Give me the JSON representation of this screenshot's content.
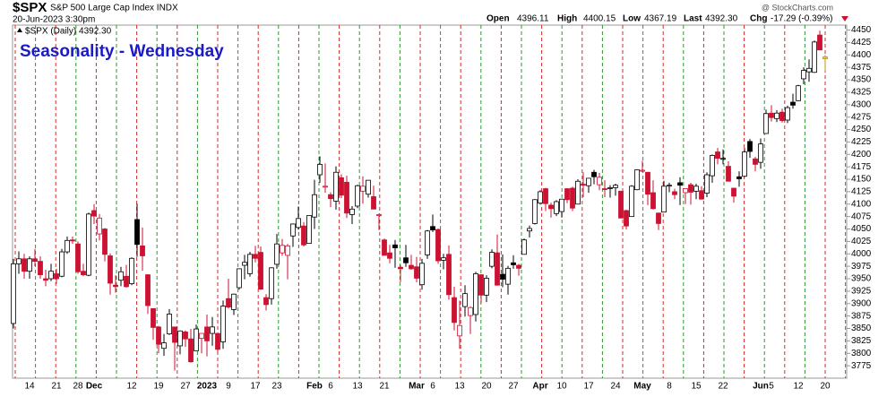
{
  "header": {
    "symbol": "$SPX",
    "name": "S&P 500 Large Cap Index INDX",
    "date": "20-Jun-2023 3:30pm",
    "open_label": "Open",
    "open": "4396.11",
    "high_label": "High",
    "high": "4400.15",
    "low_label": "Low",
    "low": "4367.19",
    "last_label": "Last",
    "last": "4392.30",
    "chg_label": "Chg",
    "chg": "-17.29 (-0.39%)",
    "watermark": "@ StockCharts.com"
  },
  "chart_data": {
    "type": "candlestick",
    "title": "Seasonality - Wednesday",
    "legend_label": "$SPX (Daily) 4392.30",
    "up_color": "#000000",
    "down_color": "#cc1133",
    "last_color": "#f2d23c",
    "title_color": "#1a1acc",
    "ylim": [
      3750,
      4460
    ],
    "yticks": [
      3775,
      3800,
      3825,
      3850,
      3875,
      3900,
      3925,
      3950,
      3975,
      4000,
      4025,
      4050,
      4075,
      4100,
      4125,
      4150,
      4175,
      4200,
      4225,
      4250,
      4275,
      4300,
      4325,
      4350,
      4375,
      4400,
      4425,
      4450
    ],
    "categories": [
      null,
      null,
      null,
      "14",
      null,
      null,
      null,
      null,
      "21",
      null,
      null,
      null,
      "28",
      null,
      null,
      "Dec",
      null,
      null,
      null,
      null,
      null,
      null,
      "12",
      null,
      null,
      null,
      null,
      "19",
      null,
      null,
      null,
      null,
      "27",
      null,
      null,
      null,
      "2023",
      null,
      null,
      null,
      "9",
      null,
      null,
      null,
      null,
      "17",
      null,
      null,
      null,
      "23",
      null,
      null,
      null,
      null,
      null,
      null,
      "Feb",
      null,
      null,
      "6",
      null,
      null,
      null,
      null,
      "13",
      null,
      null,
      null,
      null,
      "21",
      null,
      null,
      null,
      null,
      null,
      "Mar",
      null,
      null,
      "6",
      null,
      null,
      null,
      null,
      "13",
      null,
      null,
      null,
      null,
      "20",
      null,
      null,
      null,
      null,
      "27",
      null,
      null,
      null,
      null,
      "Apr",
      null,
      null,
      null,
      "10",
      null,
      null,
      null,
      null,
      "17",
      null,
      null,
      null,
      null,
      "24",
      null,
      null,
      null,
      null,
      "May",
      null,
      null,
      null,
      null,
      "8",
      null,
      null,
      null,
      null,
      "15",
      null,
      null,
      null,
      null,
      "22",
      null,
      null,
      null,
      null,
      null,
      null,
      "Jun",
      null,
      "5",
      null,
      null,
      null,
      null,
      "12",
      null,
      null,
      null,
      null,
      "20"
    ],
    "candles": [
      [
        3860,
        3990,
        3850,
        3980
      ],
      [
        3980,
        4005,
        3960,
        3990
      ],
      [
        3990,
        4000,
        3950,
        3965
      ],
      [
        3965,
        3995,
        3950,
        3990
      ],
      [
        3990,
        4010,
        3975,
        3985
      ],
      [
        3985,
        3995,
        3950,
        3958
      ],
      [
        3950,
        3968,
        3935,
        3947
      ],
      [
        3950,
        3980,
        3945,
        3965
      ],
      [
        3960,
        3970,
        3940,
        3950
      ],
      [
        3955,
        4010,
        3953,
        4004
      ],
      [
        4004,
        4035,
        4000,
        4027
      ],
      [
        4028,
        4035,
        4020,
        4026
      ],
      [
        4020,
        4025,
        3960,
        3964
      ],
      [
        3965,
        3980,
        3955,
        3958
      ],
      [
        3957,
        4083,
        3955,
        4080
      ],
      [
        4087,
        4100,
        4060,
        4076
      ],
      [
        4040,
        4080,
        4027,
        4072
      ],
      [
        4050,
        4052,
        3985,
        3999
      ],
      [
        3996,
        4001,
        3918,
        3941
      ],
      [
        3937,
        3957,
        3922,
        3934
      ],
      [
        3947,
        3974,
        3935,
        3964
      ],
      [
        3955,
        3978,
        3932,
        3934
      ],
      [
        3940,
        3993,
        3937,
        3991
      ],
      [
        4069,
        4101,
        3994,
        4019
      ],
      [
        4016,
        4053,
        3966,
        3996
      ],
      [
        3958,
        3959,
        3879,
        3896
      ],
      [
        3890,
        3890,
        3827,
        3852
      ],
      [
        3853,
        3855,
        3800,
        3818
      ],
      [
        3810,
        3839,
        3795,
        3821
      ],
      [
        3839,
        3889,
        3837,
        3879
      ],
      [
        3853,
        3853,
        3765,
        3822
      ],
      [
        3815,
        3846,
        3798,
        3845
      ],
      [
        3843,
        3846,
        3813,
        3829
      ],
      [
        3829,
        3849,
        3781,
        3783
      ],
      [
        3805,
        3858,
        3805,
        3849
      ],
      [
        3830,
        3840,
        3800,
        3840
      ],
      [
        3853,
        3878,
        3794,
        3825
      ],
      [
        3840,
        3873,
        3815,
        3853
      ],
      [
        3840,
        3840,
        3802,
        3808
      ],
      [
        3823,
        3906,
        3809,
        3895
      ],
      [
        3910,
        3950,
        3890,
        3893
      ],
      [
        3888,
        3920,
        3877,
        3919
      ],
      [
        3932,
        3970,
        3928,
        3970
      ],
      [
        3977,
        3998,
        3949,
        3983
      ],
      [
        3960,
        4004,
        3954,
        3999
      ],
      [
        3999,
        4016,
        3983,
        3991
      ],
      [
        4003,
        4015,
        3928,
        3929
      ],
      [
        3912,
        3919,
        3886,
        3898
      ],
      [
        3910,
        3973,
        3898,
        3972
      ],
      [
        3979,
        4040,
        3970,
        4020
      ],
      [
        4002,
        4030,
        3996,
        4017
      ],
      [
        3997,
        4020,
        3949,
        4016
      ],
      [
        4036,
        4061,
        4014,
        4060
      ],
      [
        4053,
        4095,
        4049,
        4071
      ],
      [
        4056,
        4064,
        4015,
        4018
      ],
      [
        4021,
        4077,
        4021,
        4077
      ],
      [
        4074,
        4149,
        4050,
        4119
      ],
      [
        4159,
        4196,
        4143,
        4180
      ],
      [
        4136,
        4182,
        4123,
        4136
      ],
      [
        4119,
        4124,
        4094,
        4111
      ],
      [
        4106,
        4176,
        4089,
        4164
      ],
      [
        4153,
        4160,
        4112,
        4118
      ],
      [
        4144,
        4157,
        4072,
        4082
      ],
      [
        4079,
        4096,
        4060,
        4090
      ],
      [
        4096,
        4139,
        4092,
        4137
      ],
      [
        4126,
        4156,
        4101,
        4136
      ],
      [
        4120,
        4148,
        4113,
        4148
      ],
      [
        4115,
        4137,
        4090,
        4090
      ],
      [
        4077,
        4081,
        4048,
        4079
      ],
      [
        4028,
        4031,
        3997,
        3997
      ],
      [
        4002,
        4018,
        3981,
        3991
      ],
      [
        4018,
        4028,
        3972,
        4012
      ],
      [
        3973,
        3978,
        3943,
        3970
      ],
      [
        3992,
        4018,
        3974,
        3982
      ],
      [
        3977,
        3998,
        3968,
        3970
      ],
      [
        3974,
        3994,
        3943,
        3951
      ],
      [
        3938,
        3990,
        3928,
        3981
      ],
      [
        3998,
        4048,
        3990,
        4046
      ],
      [
        4055,
        4079,
        4044,
        4048
      ],
      [
        4049,
        4051,
        3980,
        3986
      ],
      [
        3987,
        4000,
        3969,
        3992
      ],
      [
        3999,
        4017,
        3908,
        3918
      ],
      [
        3912,
        3934,
        3846,
        3862
      ],
      [
        3835,
        3906,
        3809,
        3856
      ],
      [
        3894,
        3937,
        3874,
        3920
      ],
      [
        3876,
        3894,
        3839,
        3892
      ],
      [
        3878,
        3964,
        3864,
        3960
      ],
      [
        3958,
        3959,
        3901,
        3917
      ],
      [
        3917,
        3957,
        3903,
        3951
      ],
      [
        3975,
        4009,
        3971,
        4003
      ],
      [
        4002,
        4039,
        3937,
        3937
      ],
      [
        3959,
        3999,
        3933,
        3949
      ],
      [
        3939,
        3976,
        3918,
        3971
      ],
      [
        3982,
        3997,
        3970,
        3978
      ],
      [
        3977,
        3980,
        3956,
        3971
      ],
      [
        3999,
        4031,
        3999,
        4028
      ],
      [
        4046,
        4057,
        4033,
        4051
      ],
      [
        4061,
        4110,
        4059,
        4109
      ],
      [
        4102,
        4128,
        4099,
        4125
      ],
      [
        4131,
        4133,
        4086,
        4101
      ],
      [
        4098,
        4103,
        4073,
        4091
      ],
      [
        4081,
        4108,
        4076,
        4105
      ],
      [
        4085,
        4110,
        4073,
        4110
      ],
      [
        4131,
        4132,
        4102,
        4109
      ],
      [
        4132,
        4135,
        4086,
        4092
      ],
      [
        4100,
        4150,
        4100,
        4146
      ],
      [
        4140,
        4164,
        4114,
        4138
      ],
      [
        4137,
        4152,
        4123,
        4152
      ],
      [
        4164,
        4169,
        4140,
        4155
      ],
      [
        4139,
        4163,
        4128,
        4154
      ],
      [
        4131,
        4148,
        4114,
        4130
      ],
      [
        4133,
        4138,
        4113,
        4133
      ],
      [
        4133,
        4141,
        4117,
        4138
      ],
      [
        4126,
        4126,
        4072,
        4072
      ],
      [
        4087,
        4089,
        4049,
        4056
      ],
      [
        4075,
        4138,
        4075,
        4136
      ],
      [
        4129,
        4170,
        4128,
        4169
      ],
      [
        4167,
        4187,
        4164,
        4168
      ],
      [
        4164,
        4165,
        4098,
        4120
      ],
      [
        4123,
        4148,
        4089,
        4091
      ],
      [
        4082,
        4083,
        4048,
        4061
      ],
      [
        4084,
        4147,
        4084,
        4136
      ],
      [
        4137,
        4143,
        4124,
        4138
      ],
      [
        4125,
        4131,
        4110,
        4119
      ],
      [
        4143,
        4154,
        4098,
        4138
      ],
      [
        4123,
        4131,
        4100,
        4131
      ],
      [
        4139,
        4143,
        4099,
        4124
      ],
      [
        4126,
        4141,
        4110,
        4136
      ],
      [
        4127,
        4136,
        4110,
        4110
      ],
      [
        4122,
        4164,
        4114,
        4159
      ],
      [
        4157,
        4200,
        4143,
        4198
      ],
      [
        4205,
        4213,
        4180,
        4192
      ],
      [
        4191,
        4210,
        4180,
        4192
      ],
      [
        4176,
        4186,
        4146,
        4146
      ],
      [
        4132,
        4133,
        4103,
        4116
      ],
      [
        4155,
        4166,
        4135,
        4151
      ],
      [
        4156,
        4213,
        4154,
        4205
      ],
      [
        4226,
        4231,
        4193,
        4206
      ],
      [
        4191,
        4195,
        4166,
        4180
      ],
      [
        4184,
        4232,
        4171,
        4221
      ],
      [
        4242,
        4290,
        4241,
        4282
      ],
      [
        4283,
        4299,
        4266,
        4274
      ],
      [
        4272,
        4289,
        4265,
        4283
      ],
      [
        4285,
        4292,
        4264,
        4268
      ],
      [
        4269,
        4298,
        4263,
        4294
      ],
      [
        4305,
        4322,
        4292,
        4299
      ],
      [
        4308,
        4340,
        4307,
        4338
      ],
      [
        4352,
        4375,
        4341,
        4369
      ],
      [
        4366,
        4391,
        4346,
        4373
      ],
      [
        4365,
        4429,
        4364,
        4426
      ],
      [
        4440,
        4449,
        4410,
        4410
      ],
      [
        4396.11,
        4400.15,
        4367.19,
        4392.3
      ]
    ]
  }
}
